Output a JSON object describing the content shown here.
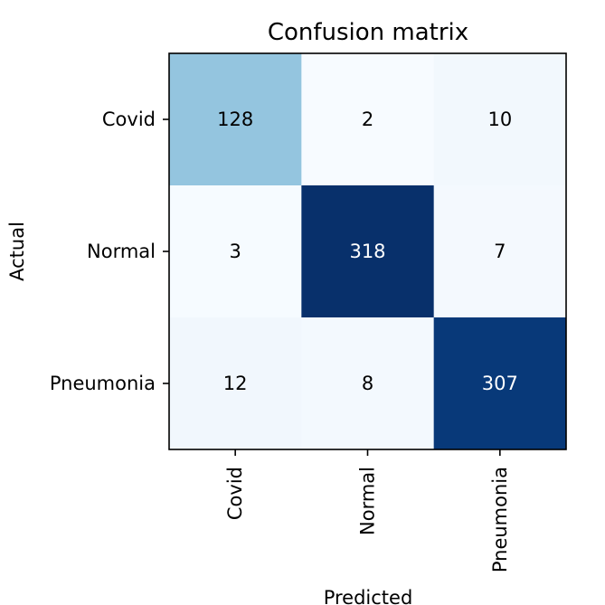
{
  "chart_data": {
    "type": "heatmap",
    "title": "Confusion matrix",
    "xlabel": "Predicted",
    "ylabel": "Actual",
    "x_categories": [
      "Covid",
      "Normal",
      "Pneumonia"
    ],
    "y_categories": [
      "Covid",
      "Normal",
      "Pneumonia"
    ],
    "values": [
      [
        128,
        2,
        10
      ],
      [
        3,
        318,
        7
      ],
      [
        12,
        8,
        307
      ]
    ],
    "colormap": "Blues",
    "value_range": [
      2,
      318
    ]
  }
}
